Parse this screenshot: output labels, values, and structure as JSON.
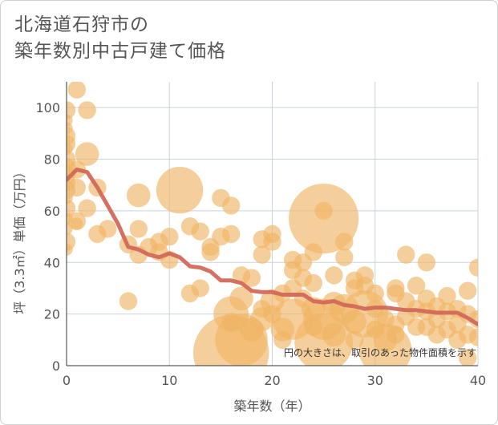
{
  "title_line1": "北海道石狩市の",
  "title_line2": "築年数別中古戸建て価格",
  "chart_data": {
    "type": "scatter",
    "xlabel": "築年数（年）",
    "ylabel": "坪（3.3㎡）単価（万円）",
    "xlim": [
      0,
      40
    ],
    "ylim": [
      0,
      110
    ],
    "x_ticks": [
      "0",
      "10",
      "20",
      "30",
      "40"
    ],
    "y_ticks": [
      "0",
      "20",
      "40",
      "60",
      "80",
      "100"
    ],
    "grid": true,
    "note": "円の大きさは、取引のあった物件面積を示す",
    "colors": {
      "bubble": "#f0b665",
      "line": "#d2695a",
      "grid": "#c9d3dd"
    },
    "points": [
      {
        "x": 0,
        "y": 99,
        "s": 2
      },
      {
        "x": 0,
        "y": 95,
        "s": 1
      },
      {
        "x": 0,
        "y": 92,
        "s": 1
      },
      {
        "x": 0,
        "y": 89,
        "s": 2
      },
      {
        "x": 0,
        "y": 86,
        "s": 2
      },
      {
        "x": 0,
        "y": 84,
        "s": 1
      },
      {
        "x": 0,
        "y": 80,
        "s": 2
      },
      {
        "x": 0,
        "y": 77,
        "s": 2
      },
      {
        "x": 0,
        "y": 74,
        "s": 2
      },
      {
        "x": 0,
        "y": 71,
        "s": 2
      },
      {
        "x": 0,
        "y": 68,
        "s": 2
      },
      {
        "x": 0,
        "y": 65,
        "s": 1
      },
      {
        "x": 0,
        "y": 61,
        "s": 2
      },
      {
        "x": 0,
        "y": 57,
        "s": 1
      },
      {
        "x": 0,
        "y": 53,
        "s": 1
      },
      {
        "x": 0,
        "y": 48,
        "s": 2
      },
      {
        "x": 0,
        "y": 45,
        "s": 1
      },
      {
        "x": 1,
        "y": 107,
        "s": 2
      },
      {
        "x": 1,
        "y": 76,
        "s": 2
      },
      {
        "x": 1,
        "y": 69,
        "s": 2
      },
      {
        "x": 1,
        "y": 56,
        "s": 2
      },
      {
        "x": 1,
        "y": 55,
        "s": 1
      },
      {
        "x": 2,
        "y": 99,
        "s": 2
      },
      {
        "x": 2,
        "y": 82,
        "s": 3
      },
      {
        "x": 2,
        "y": 61,
        "s": 2
      },
      {
        "x": 3,
        "y": 69,
        "s": 2
      },
      {
        "x": 3,
        "y": 51,
        "s": 2
      },
      {
        "x": 4,
        "y": 53,
        "s": 2
      },
      {
        "x": 6,
        "y": 47,
        "s": 2
      },
      {
        "x": 6,
        "y": 25,
        "s": 2
      },
      {
        "x": 7,
        "y": 66,
        "s": 3
      },
      {
        "x": 7,
        "y": 53,
        "s": 2
      },
      {
        "x": 7,
        "y": 43,
        "s": 2
      },
      {
        "x": 8,
        "y": 46,
        "s": 2
      },
      {
        "x": 9,
        "y": 48,
        "s": 2
      },
      {
        "x": 9,
        "y": 44,
        "s": 2
      },
      {
        "x": 10,
        "y": 50,
        "s": 2
      },
      {
        "x": 10,
        "y": 41,
        "s": 2
      },
      {
        "x": 11,
        "y": 68,
        "s": 7
      },
      {
        "x": 12,
        "y": 54,
        "s": 2
      },
      {
        "x": 12,
        "y": 28,
        "s": 2
      },
      {
        "x": 13,
        "y": 52,
        "s": 2
      },
      {
        "x": 13,
        "y": 30,
        "s": 2
      },
      {
        "x": 14,
        "y": 46,
        "s": 2
      },
      {
        "x": 14,
        "y": 44,
        "s": 2
      },
      {
        "x": 15,
        "y": 65,
        "s": 2
      },
      {
        "x": 15,
        "y": 50,
        "s": 2
      },
      {
        "x": 16,
        "y": 62,
        "s": 2
      },
      {
        "x": 16,
        "y": 51,
        "s": 2
      },
      {
        "x": 16,
        "y": 20,
        "s": 5
      },
      {
        "x": 16,
        "y": 17,
        "s": 2
      },
      {
        "x": 17,
        "y": 35,
        "s": 2
      },
      {
        "x": 17,
        "y": 26,
        "s": 3
      },
      {
        "x": 16,
        "y": 5,
        "s": 12
      },
      {
        "x": 17,
        "y": 10,
        "s": 8
      },
      {
        "x": 18,
        "y": 14,
        "s": 3
      },
      {
        "x": 18,
        "y": 34,
        "s": 2
      },
      {
        "x": 19,
        "y": 49,
        "s": 2
      },
      {
        "x": 19,
        "y": 43,
        "s": 2
      },
      {
        "x": 19,
        "y": 22,
        "s": 2
      },
      {
        "x": 19,
        "y": 18,
        "s": 3
      },
      {
        "x": 20,
        "y": 51,
        "s": 2
      },
      {
        "x": 20,
        "y": 48,
        "s": 2
      },
      {
        "x": 20,
        "y": 25,
        "s": 3
      },
      {
        "x": 20,
        "y": 20,
        "s": 2
      },
      {
        "x": 21,
        "y": 28,
        "s": 2
      },
      {
        "x": 21,
        "y": 14,
        "s": 3
      },
      {
        "x": 21,
        "y": 10,
        "s": 2
      },
      {
        "x": 22,
        "y": 41,
        "s": 2
      },
      {
        "x": 22,
        "y": 37,
        "s": 2
      },
      {
        "x": 22,
        "y": 30,
        "s": 2
      },
      {
        "x": 22,
        "y": 18,
        "s": 6
      },
      {
        "x": 23,
        "y": 40,
        "s": 2
      },
      {
        "x": 23,
        "y": 34,
        "s": 2
      },
      {
        "x": 23,
        "y": 26,
        "s": 2
      },
      {
        "x": 24,
        "y": 44,
        "s": 2
      },
      {
        "x": 24,
        "y": 32,
        "s": 2
      },
      {
        "x": 24,
        "y": 22,
        "s": 3
      },
      {
        "x": 24,
        "y": 15,
        "s": 2
      },
      {
        "x": 25,
        "y": 60,
        "s": 2
      },
      {
        "x": 25,
        "y": 57,
        "s": 11
      },
      {
        "x": 25,
        "y": 18,
        "s": 6
      },
      {
        "x": 25,
        "y": 9,
        "s": 9
      },
      {
        "x": 26,
        "y": 35,
        "s": 2
      },
      {
        "x": 26,
        "y": 24,
        "s": 3
      },
      {
        "x": 26,
        "y": 12,
        "s": 3
      },
      {
        "x": 27,
        "y": 48,
        "s": 2
      },
      {
        "x": 27,
        "y": 42,
        "s": 2
      },
      {
        "x": 27,
        "y": 22,
        "s": 4
      },
      {
        "x": 28,
        "y": 30,
        "s": 2
      },
      {
        "x": 28,
        "y": 33,
        "s": 2
      },
      {
        "x": 28,
        "y": 17,
        "s": 3
      },
      {
        "x": 28,
        "y": 10,
        "s": 2
      },
      {
        "x": 29,
        "y": 35,
        "s": 2
      },
      {
        "x": 29,
        "y": 31,
        "s": 2
      },
      {
        "x": 29,
        "y": 20,
        "s": 7
      },
      {
        "x": 30,
        "y": 28,
        "s": 2
      },
      {
        "x": 30,
        "y": 22,
        "s": 2
      },
      {
        "x": 30,
        "y": 14,
        "s": 2
      },
      {
        "x": 31,
        "y": 18,
        "s": 2
      },
      {
        "x": 31,
        "y": 10,
        "s": 3
      },
      {
        "x": 31,
        "y": 6,
        "s": 8
      },
      {
        "x": 32,
        "y": 30,
        "s": 2
      },
      {
        "x": 32,
        "y": 28,
        "s": 2
      },
      {
        "x": 32,
        "y": 16,
        "s": 2
      },
      {
        "x": 32,
        "y": 12,
        "s": 2
      },
      {
        "x": 33,
        "y": 43,
        "s": 2
      },
      {
        "x": 33,
        "y": 25,
        "s": 2
      },
      {
        "x": 33,
        "y": 19,
        "s": 2
      },
      {
        "x": 34,
        "y": 31,
        "s": 2
      },
      {
        "x": 34,
        "y": 22,
        "s": 2
      },
      {
        "x": 34,
        "y": 15,
        "s": 2
      },
      {
        "x": 35,
        "y": 40,
        "s": 2
      },
      {
        "x": 35,
        "y": 26,
        "s": 2
      },
      {
        "x": 35,
        "y": 21,
        "s": 2
      },
      {
        "x": 35,
        "y": 15,
        "s": 2
      },
      {
        "x": 36,
        "y": 23,
        "s": 2
      },
      {
        "x": 36,
        "y": 18,
        "s": 2
      },
      {
        "x": 36,
        "y": 12,
        "s": 2
      },
      {
        "x": 37,
        "y": 27,
        "s": 2
      },
      {
        "x": 37,
        "y": 21,
        "s": 2
      },
      {
        "x": 37,
        "y": 14,
        "s": 2
      },
      {
        "x": 38,
        "y": 22,
        "s": 2
      },
      {
        "x": 38,
        "y": 16,
        "s": 2
      },
      {
        "x": 38,
        "y": 10,
        "s": 2
      },
      {
        "x": 39,
        "y": 29,
        "s": 2
      },
      {
        "x": 39,
        "y": 20,
        "s": 2
      },
      {
        "x": 39,
        "y": 12,
        "s": 2
      },
      {
        "x": 39,
        "y": 3,
        "s": 2
      },
      {
        "x": 40,
        "y": 38,
        "s": 2
      },
      {
        "x": 40,
        "y": 18,
        "s": 2
      },
      {
        "x": 40,
        "y": 11,
        "s": 2
      }
    ],
    "trend": {
      "x": [
        0,
        1,
        2,
        3,
        4,
        5,
        6,
        7,
        8,
        9,
        10,
        11,
        12,
        13,
        14,
        15,
        16,
        17,
        18,
        19,
        20,
        21,
        22,
        23,
        24,
        25,
        26,
        27,
        28,
        29,
        30,
        31,
        32,
        33,
        34,
        35,
        36,
        37,
        38,
        39,
        40
      ],
      "y": [
        72,
        76,
        75,
        69,
        62,
        55,
        46,
        45,
        43,
        42,
        43.5,
        42,
        38.5,
        38,
        36.5,
        33,
        33,
        32,
        29,
        28.5,
        28.5,
        27.5,
        27.5,
        27.5,
        25,
        24.5,
        25,
        23.5,
        23,
        22,
        22.5,
        22.5,
        22,
        21.5,
        21.5,
        21,
        20.5,
        20.5,
        20.5,
        18.5,
        16
      ]
    }
  }
}
